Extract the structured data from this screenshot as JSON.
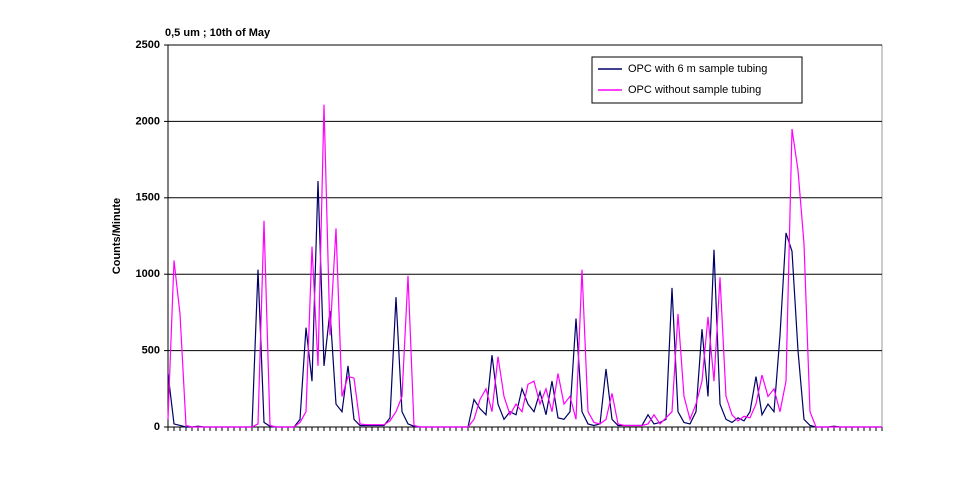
{
  "chart_data": {
    "type": "line",
    "title": "0,5 um ; 10th of May",
    "y_label": "Counts/Minute",
    "categories": [
      null,
      null,
      null,
      null,
      null,
      null,
      null,
      null,
      null,
      null,
      null,
      null,
      null,
      null,
      null,
      null,
      null,
      null,
      null,
      null,
      null,
      null,
      null,
      null,
      null,
      null,
      null,
      null,
      null,
      null,
      null,
      null,
      null,
      null,
      null,
      null,
      null,
      null,
      null,
      null,
      null,
      null,
      null,
      null,
      null,
      null,
      null,
      null,
      null,
      null,
      null,
      null,
      null,
      null,
      null,
      null,
      null,
      null,
      null,
      null,
      null,
      null,
      null,
      null,
      null,
      null,
      null,
      null,
      null,
      null,
      null,
      null,
      null,
      null,
      null,
      null,
      null,
      null,
      null,
      null,
      null,
      null,
      null,
      null,
      null,
      null,
      null,
      null,
      null,
      null,
      null,
      null,
      null,
      null,
      null,
      null,
      null,
      null,
      null,
      null,
      null,
      null,
      null,
      null,
      null,
      null,
      null,
      null,
      null,
      null,
      null,
      null,
      null,
      null,
      null,
      null,
      null,
      null,
      null,
      null
    ],
    "series": [
      {
        "name": "OPC with 6 m sample tubing",
        "color": "#000066",
        "values": [
          350,
          20,
          10,
          0,
          0,
          5,
          0,
          0,
          0,
          0,
          0,
          0,
          0,
          0,
          0,
          1030,
          30,
          5,
          0,
          0,
          0,
          0,
          50,
          650,
          300,
          1610,
          400,
          760,
          150,
          100,
          400,
          50,
          10,
          10,
          10,
          10,
          10,
          60,
          850,
          100,
          20,
          5,
          0,
          0,
          0,
          0,
          0,
          0,
          0,
          0,
          0,
          180,
          120,
          80,
          470,
          150,
          50,
          100,
          80,
          250,
          150,
          100,
          230,
          80,
          300,
          60,
          50,
          100,
          710,
          100,
          20,
          10,
          20,
          380,
          50,
          10,
          10,
          10,
          10,
          10,
          80,
          20,
          30,
          50,
          910,
          100,
          30,
          20,
          100,
          640,
          200,
          1160,
          150,
          50,
          30,
          60,
          40,
          100,
          330,
          80,
          150,
          100,
          600,
          1270,
          1150,
          500,
          50,
          10,
          0,
          0,
          0,
          5,
          0,
          0,
          0,
          0,
          0,
          0,
          0,
          0
        ]
      },
      {
        "name": "OPC without sample tubing",
        "color": "#ff00ff",
        "values": [
          50,
          1090,
          740,
          10,
          0,
          0,
          0,
          0,
          0,
          0,
          0,
          0,
          0,
          0,
          0,
          20,
          1350,
          10,
          0,
          0,
          0,
          0,
          30,
          100,
          1180,
          400,
          2110,
          600,
          1300,
          200,
          330,
          320,
          20,
          15,
          15,
          15,
          15,
          40,
          100,
          200,
          990,
          10,
          0,
          0,
          0,
          0,
          0,
          0,
          0,
          0,
          0,
          50,
          180,
          250,
          100,
          460,
          200,
          80,
          150,
          100,
          280,
          300,
          150,
          250,
          100,
          350,
          150,
          200,
          50,
          1030,
          100,
          30,
          20,
          50,
          220,
          20,
          10,
          10,
          10,
          10,
          20,
          80,
          20,
          60,
          100,
          740,
          200,
          50,
          150,
          300,
          720,
          300,
          980,
          200,
          80,
          40,
          70,
          60,
          150,
          340,
          200,
          250,
          100,
          300,
          1950,
          1680,
          1200,
          100,
          0,
          0,
          0,
          0,
          0,
          0,
          0,
          0,
          0,
          0,
          0,
          0
        ]
      }
    ],
    "ylim": [
      0,
      2500
    ],
    "yticks": [
      0,
      500,
      1000,
      1500,
      2000,
      2500
    ],
    "grid": true,
    "legend": "upper right"
  }
}
